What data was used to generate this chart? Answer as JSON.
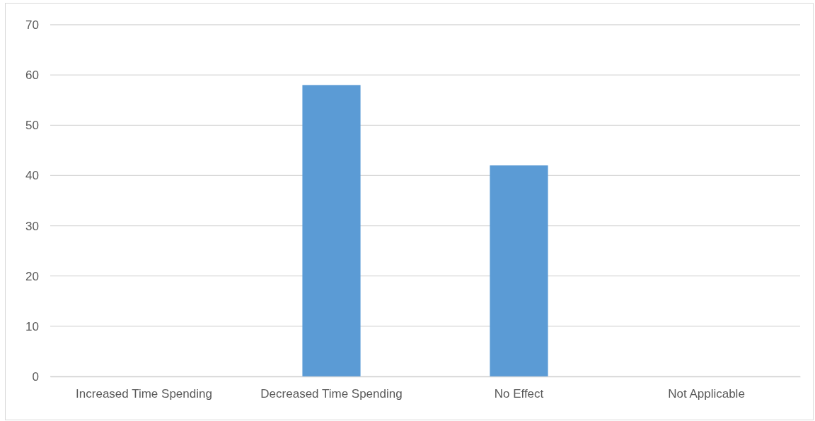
{
  "chart_data": {
    "type": "bar",
    "categories": [
      "Increased Time Spending",
      "Decreased Time Spending",
      "No Effect",
      "Not Applicable"
    ],
    "values": [
      0,
      58,
      42,
      0
    ],
    "color": "#5b9bd5",
    "ylim": [
      0,
      70
    ],
    "yticks": [
      0,
      10,
      20,
      30,
      40,
      50,
      60,
      70
    ],
    "grid": "y"
  }
}
